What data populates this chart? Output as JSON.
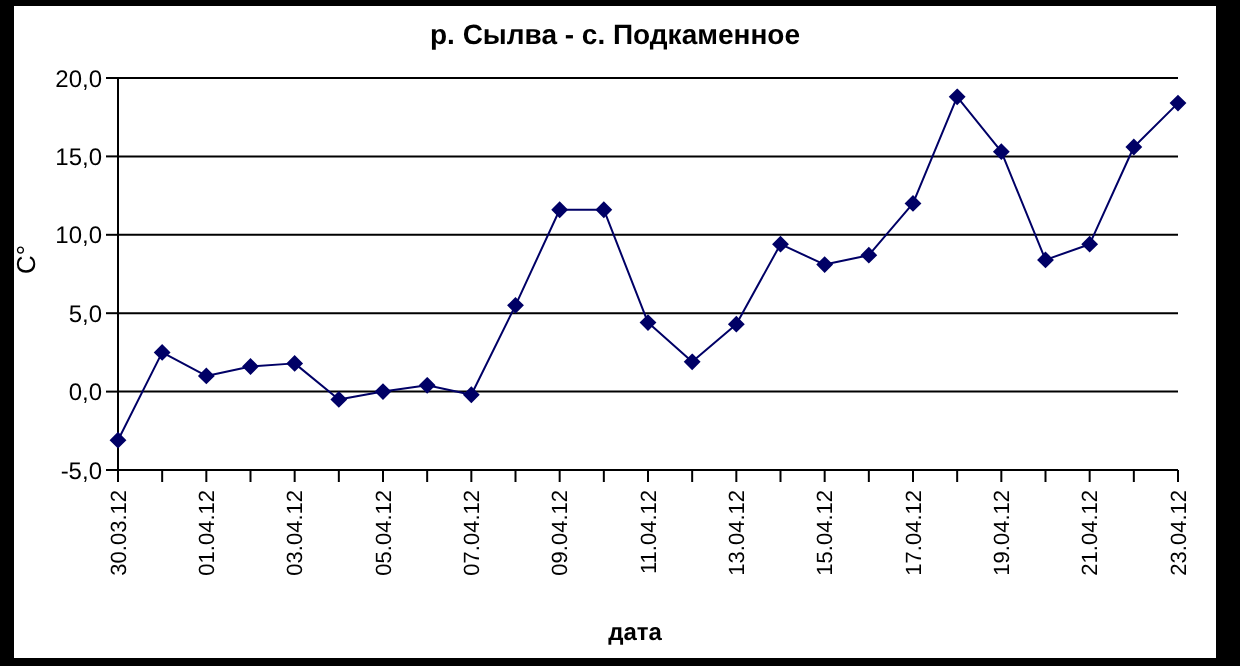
{
  "chart_data": {
    "type": "line",
    "title": "р. Сылва - с. Подкаменное",
    "xlabel": "дата",
    "ylabel": "С°",
    "categories": [
      "30.03.12",
      null,
      "01.04.12",
      null,
      "03.04.12",
      null,
      "05.04.12",
      null,
      "07.04.12",
      null,
      "09.04.12",
      null,
      "11.04.12",
      null,
      "13.04.12",
      null,
      "15.04.12",
      null,
      "17.04.12",
      null,
      "19.04.12",
      null,
      "21.04.12",
      null,
      "23.04.12"
    ],
    "series": [
      {
        "color": "#000066",
        "values": [
          -3.1,
          2.5,
          1.0,
          1.6,
          1.8,
          -0.5,
          0.0,
          0.4,
          -0.2,
          5.5,
          11.6,
          11.6,
          4.4,
          1.9,
          4.3,
          9.4,
          8.1,
          8.7,
          12.0,
          18.8,
          15.3,
          8.4,
          9.4,
          15.6,
          18.4
        ]
      }
    ],
    "ylim": [
      -5,
      20
    ],
    "yticks": [
      {
        "value": -5,
        "label": "-5,0"
      },
      {
        "value": 0,
        "label": "0,0"
      },
      {
        "value": 5,
        "label": "5,0"
      },
      {
        "value": 10,
        "label": "10,0"
      },
      {
        "value": 15,
        "label": "15,0"
      },
      {
        "value": 20,
        "label": "20,0"
      }
    ],
    "grid": "y",
    "legend": false,
    "marker": "diamond",
    "line_style": "solid"
  }
}
